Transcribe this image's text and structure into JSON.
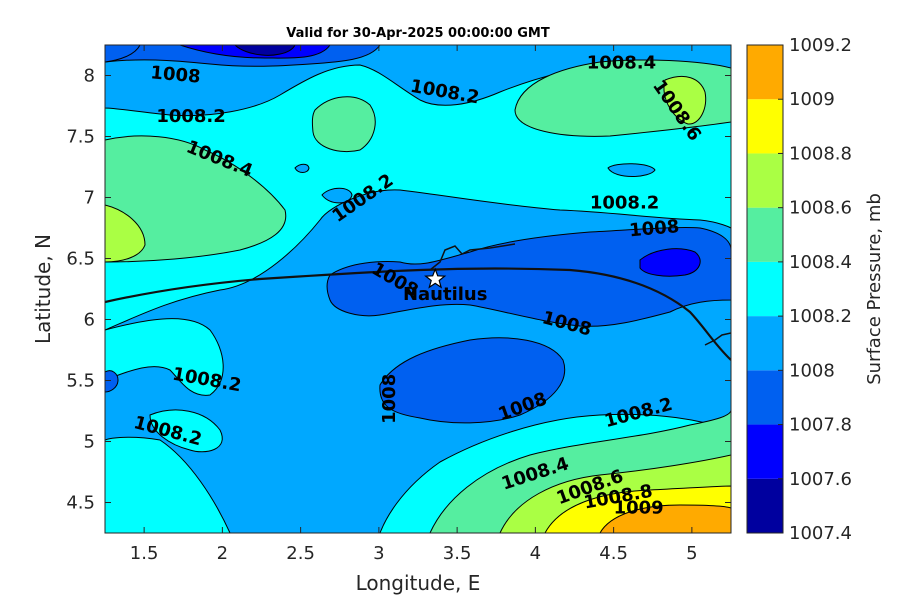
{
  "chart_data": {
    "type": "contour",
    "title": "Valid for 30-Apr-2025 00:00:00 GMT",
    "xlabel": "Longitude, E",
    "ylabel": "Latitude, N",
    "xlim": [
      1.25,
      5.25
    ],
    "ylim": [
      4.25,
      8.25
    ],
    "xticks": [
      "1.5",
      "2",
      "2.5",
      "3",
      "3.5",
      "4",
      "4.5",
      "5"
    ],
    "xtick_values": [
      1.5,
      2,
      2.5,
      3,
      3.5,
      4,
      4.5,
      5
    ],
    "yticks": [
      "4.5",
      "5",
      "5.5",
      "6",
      "6.5",
      "7",
      "7.5",
      "8"
    ],
    "ytick_values": [
      4.5,
      5,
      5.5,
      6,
      6.5,
      7,
      7.5,
      8
    ],
    "colorbar": {
      "label": "Surface Pressure, mb",
      "levels": [
        1007.4,
        1007.6,
        1007.8,
        1008,
        1008.2,
        1008.4,
        1008.6,
        1008.8,
        1009,
        1009.2
      ],
      "tick_labels": [
        "1007.4",
        "1007.6",
        "1007.8",
        "1008",
        "1008.2",
        "1008.4",
        "1008.6",
        "1008.8",
        "1009",
        "1009.2"
      ],
      "colors": [
        "#00009f",
        "#0000ff",
        "#0060f0",
        "#00a8ff",
        "#00ffff",
        "#55eea0",
        "#aaff44",
        "#ffff00",
        "#ffaa00",
        "#ff5500"
      ]
    },
    "marker": {
      "name": "Nautilus",
      "lon": 3.36,
      "lat": 6.33,
      "symbol": "star"
    },
    "contour_labels": [
      {
        "text": "1008",
        "lon": 1.7,
        "lat": 8.0,
        "rot": 5
      },
      {
        "text": "1008.2",
        "lon": 1.8,
        "lat": 7.66,
        "rot": 0
      },
      {
        "text": "1008.4",
        "lon": 1.98,
        "lat": 7.31,
        "rot": 22
      },
      {
        "text": "1008.2",
        "lon": 2.9,
        "lat": 6.99,
        "rot": -35
      },
      {
        "text": "1008.2",
        "lon": 3.42,
        "lat": 7.86,
        "rot": 10
      },
      {
        "text": "1008.4",
        "lon": 4.55,
        "lat": 8.1,
        "rot": 0
      },
      {
        "text": "1008.6",
        "lon": 4.9,
        "lat": 7.71,
        "rot": 55
      },
      {
        "text": "1008.2",
        "lon": 4.57,
        "lat": 6.95,
        "rot": 0
      },
      {
        "text": "1008",
        "lon": 4.76,
        "lat": 6.74,
        "rot": -5
      },
      {
        "text": "1008",
        "lon": 3.1,
        "lat": 6.32,
        "rot": 30
      },
      {
        "text": "1008",
        "lon": 4.2,
        "lat": 5.96,
        "rot": 15
      },
      {
        "text": "1008.2",
        "lon": 1.9,
        "lat": 5.5,
        "rot": 10
      },
      {
        "text": "1008.2",
        "lon": 1.65,
        "lat": 5.08,
        "rot": 15
      },
      {
        "text": "1008",
        "lon": 3.07,
        "lat": 5.35,
        "rot": -90
      },
      {
        "text": "1008",
        "lon": 3.92,
        "lat": 5.28,
        "rot": -20
      },
      {
        "text": "1008.2",
        "lon": 4.66,
        "lat": 5.23,
        "rot": -15
      },
      {
        "text": "1008.4",
        "lon": 4.0,
        "lat": 4.73,
        "rot": -18
      },
      {
        "text": "1008.6",
        "lon": 4.35,
        "lat": 4.62,
        "rot": -20
      },
      {
        "text": "1008.8",
        "lon": 4.53,
        "lat": 4.54,
        "rot": -10
      },
      {
        "text": "1009",
        "lon": 4.66,
        "lat": 4.45,
        "rot": 0
      }
    ]
  }
}
